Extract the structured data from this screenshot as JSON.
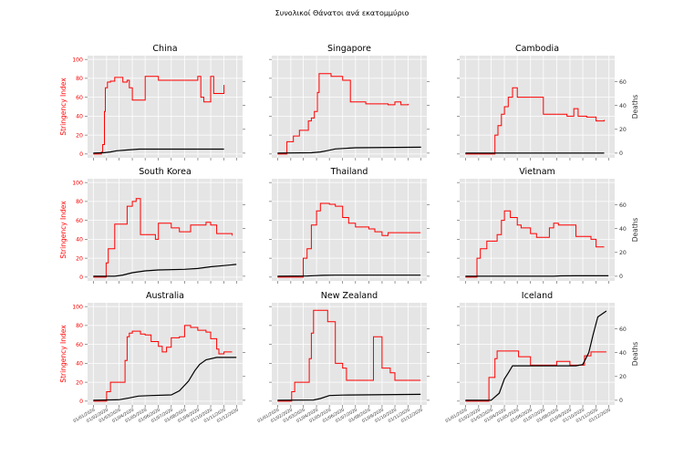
{
  "figure": {
    "suptitle": "Συνολικοί Θάνατοι ανά εκατομμύριο",
    "left_axis_label": "Stringency Index",
    "right_axis_label": "Deaths",
    "stringency_color": "#ff0000",
    "deaths_color": "#000000",
    "panel_bg": "#e5e5e5",
    "grid_color": "#ffffff"
  },
  "chart_data": {
    "type": "line",
    "layout": "3x3 grid",
    "grid": true,
    "x_axis": {
      "type": "date",
      "range": [
        "2020-01-01",
        "2020-12-01"
      ],
      "ticks": [
        "01/01/2020",
        "01/02/2020",
        "01/03/2020",
        "01/04/2020",
        "01/05/2020",
        "01/06/2020",
        "01/07/2020",
        "01/08/2020",
        "01/09/2020",
        "01/10/2020",
        "01/11/2020",
        "01/12/2020"
      ]
    },
    "left_axis": {
      "label": "Stringency Index",
      "range": [
        0,
        100
      ],
      "ticks": [
        0,
        20,
        40,
        60,
        80,
        100
      ]
    },
    "right_axis": {
      "label": "Deaths",
      "range": [
        0,
        78
      ],
      "ticks": [
        0,
        20,
        40,
        60
      ]
    },
    "panels": [
      {
        "country": "China",
        "stringency": [
          [
            "2020-01-01",
            0
          ],
          [
            "2020-01-20",
            2
          ],
          [
            "2020-01-23",
            10
          ],
          [
            "2020-01-27",
            45
          ],
          [
            "2020-01-29",
            70
          ],
          [
            "2020-02-03",
            76
          ],
          [
            "2020-02-10",
            77
          ],
          [
            "2020-02-20",
            81
          ],
          [
            "2020-03-10",
            76
          ],
          [
            "2020-03-20",
            78
          ],
          [
            "2020-03-25",
            70
          ],
          [
            "2020-04-01",
            57
          ],
          [
            "2020-04-25",
            57
          ],
          [
            "2020-05-01",
            82
          ],
          [
            "2020-06-01",
            78
          ],
          [
            "2020-09-01",
            82
          ],
          [
            "2020-09-08",
            60
          ],
          [
            "2020-09-15",
            55
          ],
          [
            "2020-10-01",
            82
          ],
          [
            "2020-10-08",
            64
          ],
          [
            "2020-10-27",
            64
          ],
          [
            "2020-11-01",
            73
          ]
        ],
        "deaths": [
          [
            "2020-01-01",
            0
          ],
          [
            "2020-01-25",
            0.3
          ],
          [
            "2020-02-10",
            1
          ],
          [
            "2020-02-25",
            2
          ],
          [
            "2020-03-15",
            2.5
          ],
          [
            "2020-04-17",
            3.4
          ],
          [
            "2020-11-01",
            3.4
          ]
        ]
      },
      {
        "country": "Singapore",
        "stringency": [
          [
            "2020-01-01",
            0
          ],
          [
            "2020-01-23",
            13
          ],
          [
            "2020-02-01",
            13
          ],
          [
            "2020-02-07",
            19
          ],
          [
            "2020-02-18",
            19
          ],
          [
            "2020-02-21",
            25
          ],
          [
            "2020-03-10",
            25
          ],
          [
            "2020-03-13",
            35
          ],
          [
            "2020-03-20",
            38
          ],
          [
            "2020-03-27",
            45
          ],
          [
            "2020-04-03",
            65
          ],
          [
            "2020-04-07",
            85
          ],
          [
            "2020-05-05",
            82
          ],
          [
            "2020-06-01",
            78
          ],
          [
            "2020-06-19",
            55
          ],
          [
            "2020-07-25",
            53
          ],
          [
            "2020-09-15",
            52
          ],
          [
            "2020-10-01",
            55
          ],
          [
            "2020-10-15",
            52
          ],
          [
            "2020-11-01",
            53
          ]
        ],
        "deaths": [
          [
            "2020-01-01",
            0
          ],
          [
            "2020-03-20",
            0.3
          ],
          [
            "2020-04-10",
            1
          ],
          [
            "2020-04-25",
            2
          ],
          [
            "2020-05-15",
            3.5
          ],
          [
            "2020-07-01",
            4.5
          ],
          [
            "2020-12-01",
            5
          ]
        ]
      },
      {
        "country": "Cambodia",
        "stringency": [
          [
            "2020-01-01",
            0
          ],
          [
            "2020-01-27",
            0
          ],
          [
            "2020-02-01",
            0
          ],
          [
            "2020-03-01",
            0
          ],
          [
            "2020-03-10",
            20
          ],
          [
            "2020-03-17",
            30
          ],
          [
            "2020-03-25",
            42
          ],
          [
            "2020-04-01",
            50
          ],
          [
            "2020-04-10",
            60
          ],
          [
            "2020-04-20",
            70
          ],
          [
            "2020-05-01",
            60
          ],
          [
            "2020-06-20",
            60
          ],
          [
            "2020-07-01",
            42
          ],
          [
            "2020-08-25",
            40
          ],
          [
            "2020-09-10",
            48
          ],
          [
            "2020-09-20",
            40
          ],
          [
            "2020-10-10",
            39
          ],
          [
            "2020-11-01",
            35
          ],
          [
            "2020-11-20",
            36
          ]
        ],
        "deaths": [
          [
            "2020-01-01",
            0
          ],
          [
            "2020-11-20",
            0
          ]
        ]
      },
      {
        "country": "South Korea",
        "stringency": [
          [
            "2020-01-01",
            0
          ],
          [
            "2020-01-20",
            0
          ],
          [
            "2020-01-31",
            15
          ],
          [
            "2020-02-05",
            30
          ],
          [
            "2020-02-20",
            56
          ],
          [
            "2020-03-20",
            75
          ],
          [
            "2020-04-01",
            80
          ],
          [
            "2020-04-10",
            83
          ],
          [
            "2020-04-20",
            45
          ],
          [
            "2020-05-15",
            45
          ],
          [
            "2020-05-25",
            40
          ],
          [
            "2020-06-01",
            57
          ],
          [
            "2020-07-01",
            52
          ],
          [
            "2020-07-20",
            48
          ],
          [
            "2020-08-15",
            55
          ],
          [
            "2020-09-20",
            58
          ],
          [
            "2020-10-01",
            55
          ],
          [
            "2020-10-15",
            46
          ],
          [
            "2020-11-20",
            44
          ]
        ],
        "deaths": [
          [
            "2020-01-01",
            0
          ],
          [
            "2020-02-20",
            0
          ],
          [
            "2020-03-10",
            1
          ],
          [
            "2020-04-01",
            3
          ],
          [
            "2020-05-01",
            4.5
          ],
          [
            "2020-06-01",
            5.3
          ],
          [
            "2020-08-01",
            5.8
          ],
          [
            "2020-09-01",
            6.5
          ],
          [
            "2020-10-01",
            8
          ],
          [
            "2020-11-01",
            9
          ],
          [
            "2020-11-30",
            10
          ]
        ]
      },
      {
        "country": "Thailand",
        "stringency": [
          [
            "2020-01-01",
            0
          ],
          [
            "2020-02-15",
            0
          ],
          [
            "2020-03-01",
            20
          ],
          [
            "2020-03-10",
            30
          ],
          [
            "2020-03-20",
            55
          ],
          [
            "2020-04-01",
            70
          ],
          [
            "2020-04-10",
            78
          ],
          [
            "2020-05-01",
            77
          ],
          [
            "2020-05-15",
            75
          ],
          [
            "2020-06-01",
            63
          ],
          [
            "2020-06-15",
            57
          ],
          [
            "2020-07-01",
            53
          ],
          [
            "2020-08-01",
            51
          ],
          [
            "2020-08-15",
            48
          ],
          [
            "2020-09-01",
            44
          ],
          [
            "2020-09-15",
            47
          ],
          [
            "2020-11-30",
            47
          ]
        ],
        "deaths": [
          [
            "2020-01-01",
            0
          ],
          [
            "2020-03-10",
            0.2
          ],
          [
            "2020-03-25",
            0.5
          ],
          [
            "2020-04-15",
            0.8
          ],
          [
            "2020-05-15",
            0.9
          ],
          [
            "2020-11-30",
            0.9
          ]
        ]
      },
      {
        "country": "Vietnam",
        "stringency": [
          [
            "2020-01-01",
            0
          ],
          [
            "2020-01-20",
            0
          ],
          [
            "2020-01-28",
            20
          ],
          [
            "2020-02-05",
            30
          ],
          [
            "2020-02-20",
            38
          ],
          [
            "2020-03-15",
            45
          ],
          [
            "2020-03-25",
            60
          ],
          [
            "2020-04-01",
            70
          ],
          [
            "2020-04-15",
            63
          ],
          [
            "2020-05-01",
            55
          ],
          [
            "2020-05-10",
            52
          ],
          [
            "2020-06-01",
            46
          ],
          [
            "2020-06-15",
            42
          ],
          [
            "2020-07-15",
            52
          ],
          [
            "2020-07-25",
            57
          ],
          [
            "2020-08-05",
            55
          ],
          [
            "2020-09-15",
            43
          ],
          [
            "2020-10-20",
            40
          ],
          [
            "2020-11-01",
            32
          ],
          [
            "2020-11-20",
            32
          ]
        ],
        "deaths": [
          [
            "2020-01-01",
            0
          ],
          [
            "2020-07-25",
            0
          ],
          [
            "2020-08-10",
            0.3
          ],
          [
            "2020-09-15",
            0.4
          ],
          [
            "2020-11-30",
            0.4
          ]
        ]
      },
      {
        "country": "Australia",
        "stringency": [
          [
            "2020-01-01",
            0
          ],
          [
            "2020-02-01",
            10
          ],
          [
            "2020-02-10",
            20
          ],
          [
            "2020-03-10",
            20
          ],
          [
            "2020-03-15",
            43
          ],
          [
            "2020-03-20",
            68
          ],
          [
            "2020-03-25",
            72
          ],
          [
            "2020-04-01",
            74
          ],
          [
            "2020-04-20",
            71
          ],
          [
            "2020-05-01",
            70
          ],
          [
            "2020-05-15",
            63
          ],
          [
            "2020-06-01",
            58
          ],
          [
            "2020-06-10",
            52
          ],
          [
            "2020-06-20",
            57
          ],
          [
            "2020-07-01",
            67
          ],
          [
            "2020-07-20",
            68
          ],
          [
            "2020-08-01",
            80
          ],
          [
            "2020-08-15",
            78
          ],
          [
            "2020-09-01",
            75
          ],
          [
            "2020-09-20",
            73
          ],
          [
            "2020-10-01",
            66
          ],
          [
            "2020-10-15",
            55
          ],
          [
            "2020-10-20",
            50
          ],
          [
            "2020-11-01",
            52
          ],
          [
            "2020-11-20",
            52
          ]
        ],
        "deaths": [
          [
            "2020-01-01",
            0
          ],
          [
            "2020-03-01",
            0.5
          ],
          [
            "2020-03-25",
            2
          ],
          [
            "2020-04-15",
            3.5
          ],
          [
            "2020-05-15",
            4
          ],
          [
            "2020-07-01",
            4.5
          ],
          [
            "2020-07-20",
            8
          ],
          [
            "2020-08-10",
            16
          ],
          [
            "2020-08-25",
            25
          ],
          [
            "2020-09-05",
            30
          ],
          [
            "2020-09-20",
            34
          ],
          [
            "2020-10-15",
            36
          ],
          [
            "2020-11-30",
            36
          ]
        ]
      },
      {
        "country": "New Zealand",
        "stringency": [
          [
            "2020-01-01",
            0
          ],
          [
            "2020-02-03",
            10
          ],
          [
            "2020-02-10",
            20
          ],
          [
            "2020-03-10",
            20
          ],
          [
            "2020-03-15",
            45
          ],
          [
            "2020-03-20",
            72
          ],
          [
            "2020-03-25",
            96
          ],
          [
            "2020-04-10",
            96
          ],
          [
            "2020-04-27",
            84
          ],
          [
            "2020-05-15",
            40
          ],
          [
            "2020-06-01",
            35
          ],
          [
            "2020-06-10",
            22
          ],
          [
            "2020-08-01",
            22
          ],
          [
            "2020-08-12",
            68
          ],
          [
            "2020-09-01",
            35
          ],
          [
            "2020-09-20",
            30
          ],
          [
            "2020-10-01",
            22
          ],
          [
            "2020-11-30",
            22
          ]
        ],
        "deaths": [
          [
            "2020-01-01",
            0
          ],
          [
            "2020-03-25",
            0.2
          ],
          [
            "2020-04-10",
            1.5
          ],
          [
            "2020-05-01",
            4
          ],
          [
            "2020-06-01",
            4.4
          ],
          [
            "2020-11-30",
            5
          ]
        ]
      },
      {
        "country": "Iceland",
        "stringency": [
          [
            "2020-01-01",
            0
          ],
          [
            "2020-02-15",
            0
          ],
          [
            "2020-02-25",
            25
          ],
          [
            "2020-03-10",
            45
          ],
          [
            "2020-03-15",
            53
          ],
          [
            "2020-04-01",
            53
          ],
          [
            "2020-04-15",
            53
          ],
          [
            "2020-05-04",
            47
          ],
          [
            "2020-06-01",
            38
          ],
          [
            "2020-06-15",
            38
          ],
          [
            "2020-07-15",
            38
          ],
          [
            "2020-08-01",
            42
          ],
          [
            "2020-09-01",
            38
          ],
          [
            "2020-09-15",
            38
          ],
          [
            "2020-10-05",
            48
          ],
          [
            "2020-10-20",
            52
          ],
          [
            "2020-11-10",
            52
          ],
          [
            "2020-11-25",
            52
          ]
        ],
        "deaths": [
          [
            "2020-01-01",
            0
          ],
          [
            "2020-03-01",
            0
          ],
          [
            "2020-03-20",
            6
          ],
          [
            "2020-04-01",
            18
          ],
          [
            "2020-04-10",
            23
          ],
          [
            "2020-04-20",
            29
          ],
          [
            "2020-09-15",
            29
          ],
          [
            "2020-10-01",
            30
          ],
          [
            "2020-10-15",
            40
          ],
          [
            "2020-10-25",
            55
          ],
          [
            "2020-11-05",
            70
          ],
          [
            "2020-11-25",
            75
          ]
        ]
      }
    ]
  }
}
